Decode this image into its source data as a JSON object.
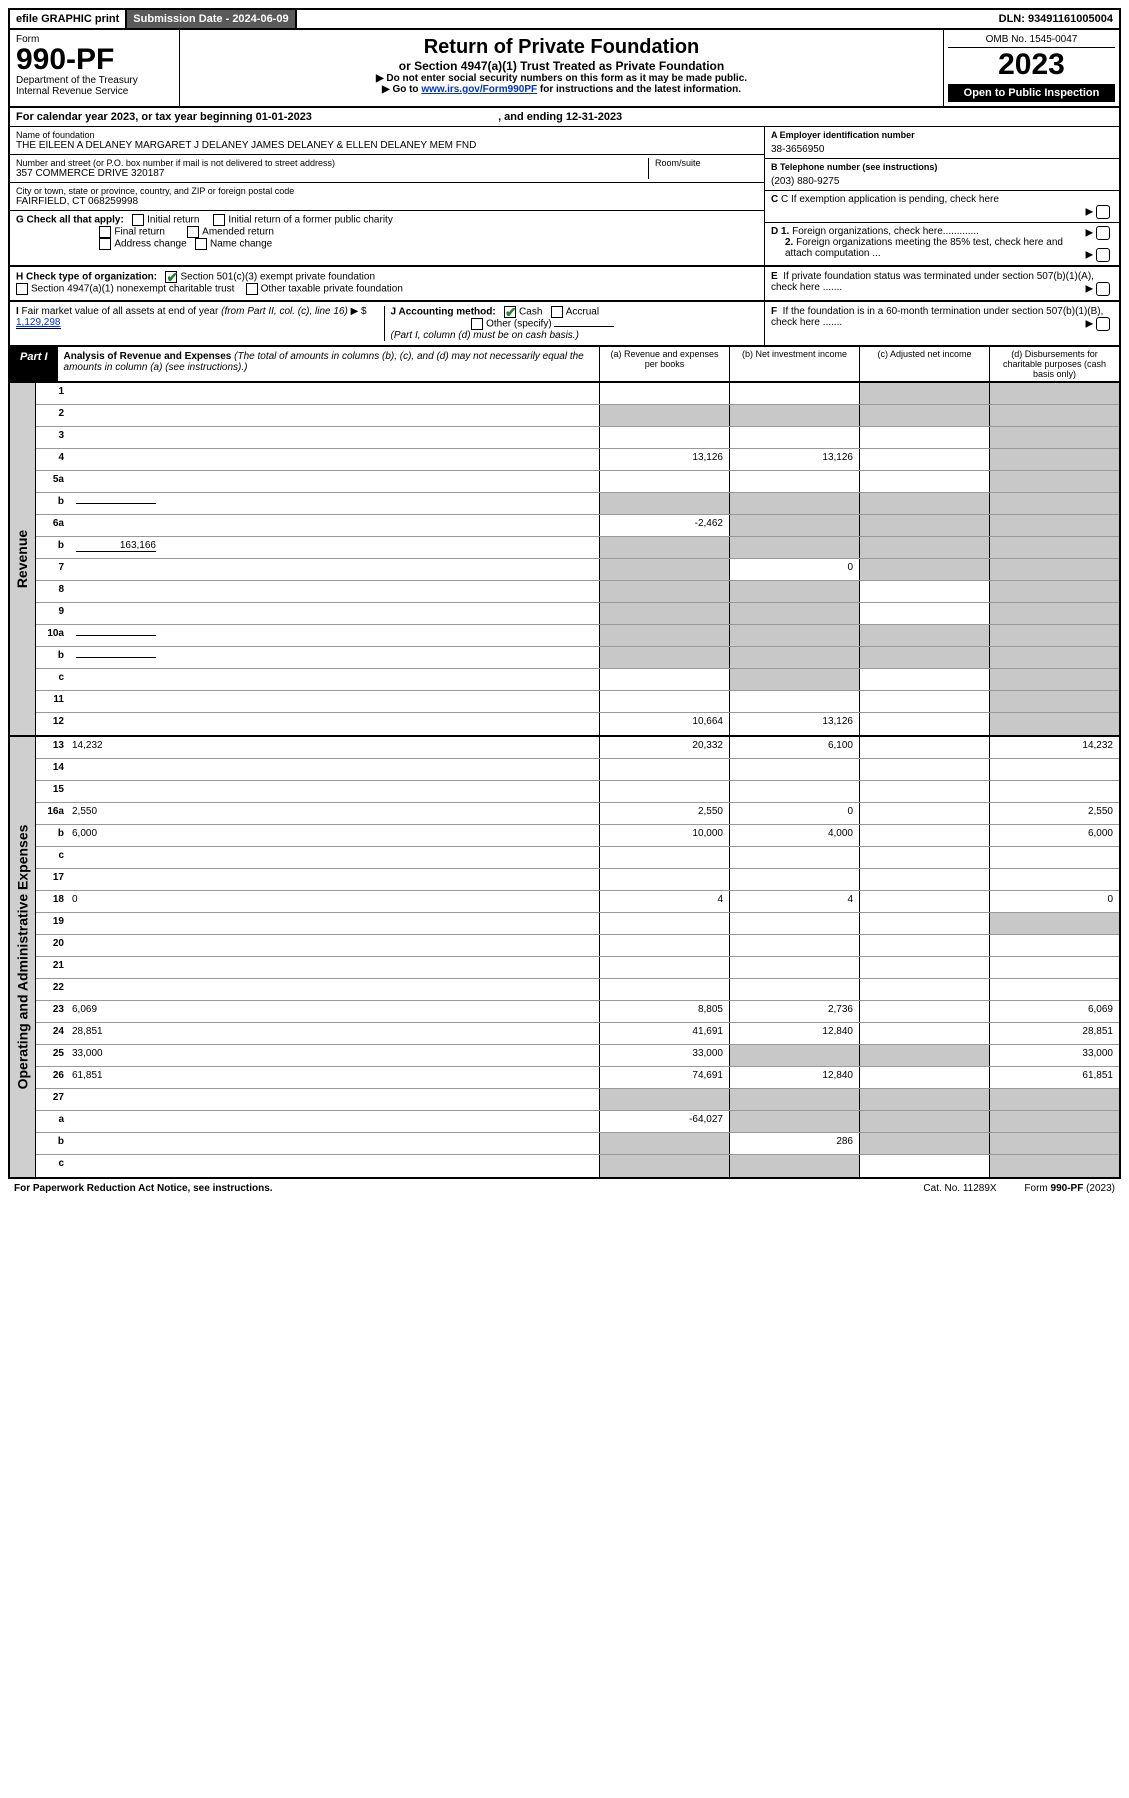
{
  "topbar": {
    "efile": "efile GRAPHIC print",
    "submission": "Submission Date - 2024-06-09",
    "dln": "DLN: 93491161005004"
  },
  "header": {
    "form_word": "Form",
    "form_number": "990-PF",
    "dept": "Department of the Treasury\nInternal Revenue Service",
    "title": "Return of Private Foundation",
    "subtitle": "or Section 4947(a)(1) Trust Treated as Private Foundation",
    "instr1": "▶ Do not enter social security numbers on this form as it may be made public.",
    "instr2_pre": "▶ Go to ",
    "instr2_link": "www.irs.gov/Form990PF",
    "instr2_post": " for instructions and the latest information.",
    "omb": "OMB No. 1545-0047",
    "year": "2023",
    "open": "Open to Public Inspection"
  },
  "calendar": {
    "text_pre": "For calendar year 2023, or tax year beginning ",
    "begin": "01-01-2023",
    "mid": ", and ending ",
    "end": "12-31-2023"
  },
  "info": {
    "name_hdr": "Name of foundation",
    "name": "THE EILEEN A DELANEY MARGARET J DELANEY JAMES DELANEY & ELLEN DELANEY MEM FND",
    "addr_hdr": "Number and street (or P.O. box number if mail is not delivered to street address)",
    "addr": "357 COMMERCE DRIVE 320187",
    "room_hdr": "Room/suite",
    "city_hdr": "City or town, state or province, country, and ZIP or foreign postal code",
    "city": "FAIRFIELD, CT  068259998",
    "ein_hdr": "A Employer identification number",
    "ein": "38-3656950",
    "tel_hdr": "B Telephone number (see instructions)",
    "tel": "(203) 880-9275",
    "c_text": "C If exemption application is pending, check here",
    "d1": "D 1. Foreign organizations, check here.............",
    "d2": "2. Foreign organizations meeting the 85% test, check here and attach computation ...",
    "e_text": "E  If private foundation status was terminated under section 507(b)(1)(A), check here .......",
    "f_text": "F  If the foundation is in a 60-month termination under section 507(b)(1)(B), check here ......."
  },
  "checks": {
    "g_label": "G Check all that apply:",
    "g_items": [
      "Initial return",
      "Initial return of a former public charity",
      "Final return",
      "Amended return",
      "Address change",
      "Name change"
    ],
    "h_label": "H Check type of organization:",
    "h1": "Section 501(c)(3) exempt private foundation",
    "h2": "Section 4947(a)(1) nonexempt charitable trust",
    "h3": "Other taxable private foundation",
    "i_label": "I Fair market value of all assets at end of year (from Part II, col. (c), line 16)",
    "i_value": "1,129,298",
    "j_label": "J Accounting method:",
    "j_cash": "Cash",
    "j_accrual": "Accrual",
    "j_other": "Other (specify)",
    "j_note": "(Part I, column (d) must be on cash basis.)"
  },
  "part1": {
    "label": "Part I",
    "title": "Analysis of Revenue and Expenses",
    "title_note": "(The total of amounts in columns (b), (c), and (d) may not necessarily equal the amounts in column (a) (see instructions).)",
    "col_a": "(a) Revenue and expenses per books",
    "col_b": "(b) Net investment income",
    "col_c": "(c) Adjusted net income",
    "col_d": "(d) Disbursements for charitable purposes (cash basis only)"
  },
  "sections": {
    "revenue": "Revenue",
    "expenses": "Operating and Administrative Expenses"
  },
  "rows": [
    {
      "n": "1",
      "d": "",
      "a": "",
      "b": "",
      "c": "",
      "shade": [
        "c",
        "d"
      ]
    },
    {
      "n": "2",
      "d": "",
      "a": "",
      "b": "",
      "c": "",
      "shade": [
        "a",
        "b",
        "c",
        "d"
      ]
    },
    {
      "n": "3",
      "d": "",
      "a": "",
      "b": "",
      "c": "",
      "shade": [
        "d"
      ]
    },
    {
      "n": "4",
      "d": "",
      "a": "13,126",
      "b": "13,126",
      "c": "",
      "shade": [
        "d"
      ]
    },
    {
      "n": "5a",
      "d": "",
      "a": "",
      "b": "",
      "c": "",
      "shade": [
        "d"
      ]
    },
    {
      "n": "b",
      "d": "",
      "a": "",
      "b": "",
      "c": "",
      "shade": [
        "a",
        "b",
        "c",
        "d"
      ],
      "inline": true
    },
    {
      "n": "6a",
      "d": "",
      "a": "-2,462",
      "b": "",
      "c": "",
      "shade": [
        "b",
        "c",
        "d"
      ]
    },
    {
      "n": "b",
      "d": "",
      "a": "",
      "b": "",
      "c": "",
      "shade": [
        "a",
        "b",
        "c",
        "d"
      ],
      "inline": true,
      "inlineval": "163,166"
    },
    {
      "n": "7",
      "d": "",
      "a": "",
      "b": "0",
      "c": "",
      "shade": [
        "a",
        "c",
        "d"
      ]
    },
    {
      "n": "8",
      "d": "",
      "a": "",
      "b": "",
      "c": "",
      "shade": [
        "a",
        "b",
        "d"
      ]
    },
    {
      "n": "9",
      "d": "",
      "a": "",
      "b": "",
      "c": "",
      "shade": [
        "a",
        "b",
        "d"
      ]
    },
    {
      "n": "10a",
      "d": "",
      "a": "",
      "b": "",
      "c": "",
      "shade": [
        "a",
        "b",
        "c",
        "d"
      ],
      "inline": true
    },
    {
      "n": "b",
      "d": "",
      "a": "",
      "b": "",
      "c": "",
      "shade": [
        "a",
        "b",
        "c",
        "d"
      ],
      "inline": true
    },
    {
      "n": "c",
      "d": "",
      "a": "",
      "b": "",
      "c": "",
      "shade": [
        "b",
        "d"
      ]
    },
    {
      "n": "11",
      "d": "",
      "a": "",
      "b": "",
      "c": "",
      "shade": [
        "d"
      ]
    },
    {
      "n": "12",
      "d": "",
      "a": "10,664",
      "b": "13,126",
      "c": "",
      "shade": [
        "d"
      ]
    }
  ],
  "exp_rows": [
    {
      "n": "13",
      "d": "14,232",
      "a": "20,332",
      "b": "6,100",
      "c": ""
    },
    {
      "n": "14",
      "d": "",
      "a": "",
      "b": "",
      "c": ""
    },
    {
      "n": "15",
      "d": "",
      "a": "",
      "b": "",
      "c": ""
    },
    {
      "n": "16a",
      "d": "2,550",
      "a": "2,550",
      "b": "0",
      "c": ""
    },
    {
      "n": "b",
      "d": "6,000",
      "a": "10,000",
      "b": "4,000",
      "c": ""
    },
    {
      "n": "c",
      "d": "",
      "a": "",
      "b": "",
      "c": ""
    },
    {
      "n": "17",
      "d": "",
      "a": "",
      "b": "",
      "c": ""
    },
    {
      "n": "18",
      "d": "0",
      "a": "4",
      "b": "4",
      "c": ""
    },
    {
      "n": "19",
      "d": "",
      "a": "",
      "b": "",
      "c": "",
      "shade": [
        "d"
      ]
    },
    {
      "n": "20",
      "d": "",
      "a": "",
      "b": "",
      "c": ""
    },
    {
      "n": "21",
      "d": "",
      "a": "",
      "b": "",
      "c": ""
    },
    {
      "n": "22",
      "d": "",
      "a": "",
      "b": "",
      "c": ""
    },
    {
      "n": "23",
      "d": "6,069",
      "a": "8,805",
      "b": "2,736",
      "c": ""
    },
    {
      "n": "24",
      "d": "28,851",
      "a": "41,691",
      "b": "12,840",
      "c": ""
    },
    {
      "n": "25",
      "d": "33,000",
      "a": "33,000",
      "b": "",
      "c": "",
      "shade": [
        "b",
        "c"
      ]
    },
    {
      "n": "26",
      "d": "61,851",
      "a": "74,691",
      "b": "12,840",
      "c": ""
    },
    {
      "n": "27",
      "d": "",
      "a": "",
      "b": "",
      "c": "",
      "shade": [
        "a",
        "b",
        "c",
        "d"
      ]
    },
    {
      "n": "a",
      "d": "",
      "a": "-64,027",
      "b": "",
      "c": "",
      "shade": [
        "b",
        "c",
        "d"
      ]
    },
    {
      "n": "b",
      "d": "",
      "a": "",
      "b": "286",
      "c": "",
      "shade": [
        "a",
        "c",
        "d"
      ]
    },
    {
      "n": "c",
      "d": "",
      "a": "",
      "b": "",
      "c": "",
      "shade": [
        "a",
        "b",
        "d"
      ]
    }
  ],
  "footer": {
    "left": "For Paperwork Reduction Act Notice, see instructions.",
    "cat": "Cat. No. 11289X",
    "form": "Form 990-PF (2023)"
  }
}
